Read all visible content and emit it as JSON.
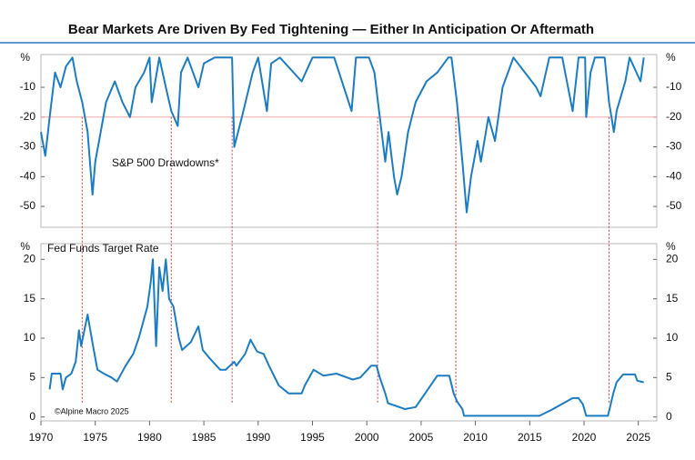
{
  "chart_data": [
    {
      "type": "line",
      "title": "Bear Markets Are Driven By Fed Tightening — Either In Anticipation Or Aftermath",
      "annotation": "S&P 500 Drawdowns*",
      "y_unit": "%",
      "color": "#1a7dc4",
      "x": [
        1970.0,
        1970.4,
        1970.8,
        1971.3,
        1971.8,
        1972.3,
        1972.9,
        1973.3,
        1973.8,
        1974.3,
        1974.75,
        1975.0,
        1975.5,
        1976.0,
        1976.8,
        1977.5,
        1978.2,
        1978.7,
        1979.5,
        1980.0,
        1980.2,
        1980.9,
        1981.5,
        1982.0,
        1982.6,
        1982.9,
        1983.5,
        1984.5,
        1985.0,
        1986.0,
        1987.6,
        1987.8,
        1988.5,
        1989.5,
        1990.0,
        1990.8,
        1991.2,
        1992.0,
        1994.0,
        1995.0,
        1997.0,
        1998.6,
        1999.0,
        2000.2,
        2000.7,
        2001.2,
        2001.7,
        2002.0,
        2002.5,
        2002.8,
        2003.2,
        2003.8,
        2004.5,
        2005.5,
        2006.5,
        2007.5,
        2007.8,
        2008.3,
        2008.8,
        2009.2,
        2009.6,
        2010.2,
        2010.5,
        2011.2,
        2011.8,
        2012.5,
        2013.5,
        2015.6,
        2016.0,
        2016.8,
        2018.0,
        2018.95,
        2019.5,
        2020.1,
        2020.2,
        2020.6,
        2021.0,
        2021.9,
        2022.3,
        2022.75,
        2023.0,
        2023.8,
        2024.2,
        2025.2,
        2025.5
      ],
      "values": [
        -25,
        -33,
        -20,
        -5,
        -10,
        -3,
        0,
        -8,
        -15,
        -25,
        -46,
        -35,
        -25,
        -15,
        -8,
        -15,
        -20,
        -10,
        -5,
        0,
        -15,
        0,
        -10,
        -18,
        -23,
        -5,
        0,
        -10,
        -2,
        0,
        0,
        -30,
        -20,
        -5,
        0,
        -18,
        -2,
        0,
        -8,
        0,
        0,
        -18,
        0,
        0,
        -5,
        -20,
        -35,
        -25,
        -40,
        -46,
        -40,
        -25,
        -15,
        -8,
        -5,
        0,
        0,
        -15,
        -35,
        -52,
        -40,
        -28,
        -35,
        -20,
        -28,
        -10,
        0,
        -10,
        -13,
        0,
        0,
        -18,
        0,
        0,
        -20,
        -5,
        0,
        0,
        -15,
        -25,
        -18,
        -8,
        0,
        -8,
        0
      ],
      "xlim": [
        1970,
        2026.7
      ],
      "ylim": [
        -57,
        1
      ],
      "yticks": [
        -10,
        -20,
        -30,
        -40,
        -50
      ],
      "hline": -20,
      "vlines": [
        1973.8,
        1982.0,
        1987.6,
        2001.0,
        2008.2,
        2022.3
      ]
    },
    {
      "type": "line",
      "annotation": "Fed Funds Target Rate",
      "y_unit": "%",
      "color": "#1a7dc4",
      "footnote": "©Alpine Macro 2025",
      "x": [
        1970.8,
        1971.0,
        1971.8,
        1972.0,
        1972.3,
        1972.8,
        1973.2,
        1973.5,
        1973.7,
        1974.3,
        1974.8,
        1975.2,
        1975.8,
        1976.5,
        1977.0,
        1977.8,
        1978.5,
        1979.0,
        1979.8,
        1980.1,
        1980.3,
        1980.6,
        1980.9,
        1981.2,
        1981.5,
        1981.8,
        1982.2,
        1982.7,
        1983.0,
        1983.8,
        1984.5,
        1984.9,
        1985.5,
        1986.5,
        1987.0,
        1987.8,
        1988.0,
        1988.8,
        1989.3,
        1989.9,
        1990.5,
        1991.0,
        1991.9,
        1992.8,
        1994.0,
        1994.3,
        1995.1,
        1996.0,
        1997.2,
        1998.7,
        1999.4,
        2000.4,
        2000.9,
        2001.2,
        2001.7,
        2001.95,
        2003.0,
        2003.5,
        2004.5,
        2006.5,
        2007.6,
        2008.0,
        2008.3,
        2008.8,
        2008.95,
        2015.9,
        2017.0,
        2018.95,
        2019.5,
        2019.9,
        2020.2,
        2022.2,
        2022.7,
        2023.0,
        2023.6,
        2024.7,
        2024.9,
        2025.5
      ],
      "values": [
        3.5,
        5.5,
        5.5,
        3.5,
        5,
        5.5,
        7,
        11,
        9,
        13,
        9,
        6,
        5.5,
        5,
        4.5,
        6.5,
        8,
        10,
        14,
        17,
        20,
        9,
        19,
        16,
        20,
        15,
        14,
        10,
        8.5,
        9.5,
        11.5,
        8.5,
        7.5,
        6,
        6,
        7,
        6.5,
        8,
        9.8,
        8.3,
        8,
        6.5,
        4,
        3,
        3,
        4,
        6,
        5.25,
        5.5,
        4.75,
        5,
        6.5,
        6.5,
        5,
        3,
        1.75,
        1.25,
        1,
        1.25,
        5.25,
        5.25,
        3,
        2,
        1,
        0.15,
        0.15,
        0.9,
        2.4,
        2.4,
        1.6,
        0.15,
        0.15,
        3,
        4.4,
        5.4,
        5.4,
        4.6,
        4.4
      ],
      "xlim": [
        1970,
        2026.7
      ],
      "ylim": [
        -0.5,
        22
      ],
      "yticks": [
        0,
        5,
        10,
        15,
        20
      ],
      "xticks": [
        1970,
        1975,
        1980,
        1985,
        1990,
        1995,
        2000,
        2005,
        2010,
        2015,
        2020,
        2025
      ]
    }
  ]
}
